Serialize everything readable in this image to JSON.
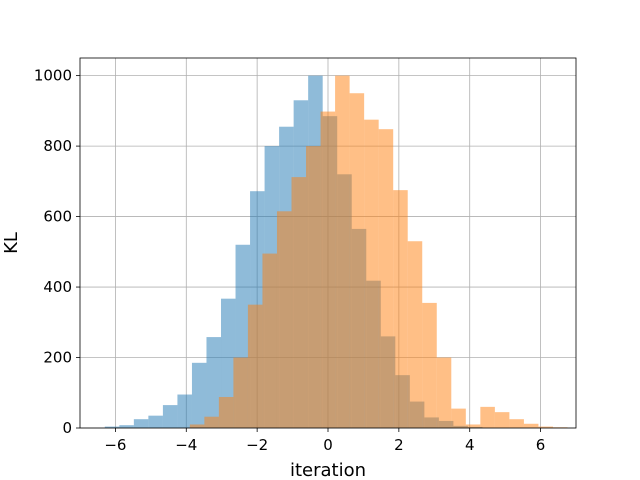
{
  "chart_data": {
    "type": "histogram",
    "xlabel": "iteration",
    "ylabel": "KL",
    "xlim": [
      -7.0,
      7.0
    ],
    "ylim": [
      0,
      1050
    ],
    "grid": true,
    "bin_width": 0.41,
    "xticks": [
      -6,
      -4,
      -2,
      0,
      2,
      4,
      6
    ],
    "yticks": [
      0,
      200,
      400,
      600,
      800,
      1000
    ],
    "series": [
      {
        "color": "#1f77b4",
        "alpha": 0.5,
        "bin_start": -6.3,
        "values": [
          4,
          8,
          25,
          35,
          65,
          95,
          185,
          258,
          367,
          520,
          672,
          800,
          855,
          930,
          1000,
          885,
          720,
          565,
          418,
          260,
          150,
          75,
          30,
          20,
          6,
          3
        ]
      },
      {
        "color": "#ff7f0e",
        "alpha": 0.5,
        "bin_start": -3.9,
        "values": [
          10,
          32,
          88,
          200,
          350,
          495,
          615,
          712,
          800,
          898,
          1000,
          950,
          875,
          848,
          675,
          530,
          355,
          200,
          55,
          10
        ]
      },
      {
        "color": "#ff7f0e",
        "alpha": 0.5,
        "bin_start": 4.3,
        "values": [
          60,
          45,
          25,
          12,
          4,
          2
        ]
      }
    ]
  }
}
